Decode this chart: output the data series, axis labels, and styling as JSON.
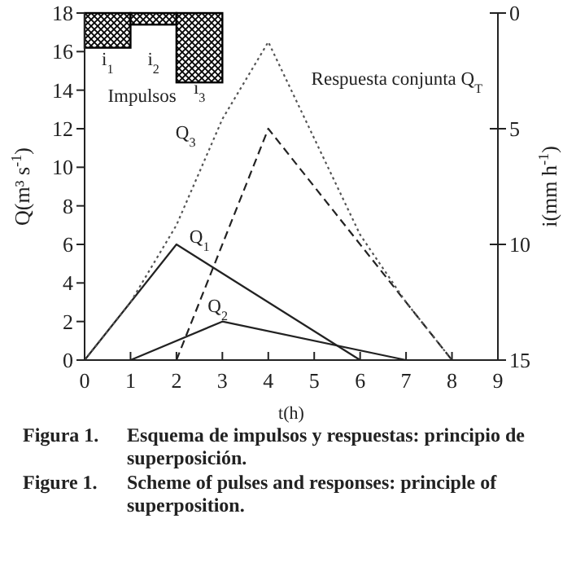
{
  "chart_data": {
    "type": "line",
    "xlabel": "t(h)",
    "ylabel": "Q(m³ s$^{-1}$)",
    "y2label": "i(mm h$^{-1}$)",
    "xlim": [
      0,
      9
    ],
    "xticks": [
      0,
      1,
      2,
      3,
      4,
      5,
      6,
      7,
      8,
      9
    ],
    "ylim": [
      0,
      18
    ],
    "yticks": [
      0,
      2,
      4,
      6,
      8,
      10,
      12,
      14,
      16,
      18
    ],
    "y2lim": [
      15,
      0
    ],
    "y2ticks": [
      0,
      5,
      10,
      15
    ],
    "grid": false,
    "marker": "none",
    "series": [
      {
        "type": "bar",
        "axis": "y2",
        "color": "#000000",
        "x": [
          0.5,
          1.5,
          2.5
        ],
        "values": [
          1.5,
          0.5,
          3
        ]
      },
      {
        "color": "#222222",
        "line_style": "solid",
        "x": [
          0,
          2,
          6
        ],
        "values": [
          0,
          6,
          0
        ]
      },
      {
        "color": "#222222",
        "line_style": "solid",
        "x": [
          1,
          3,
          7
        ],
        "values": [
          0,
          2,
          0
        ]
      },
      {
        "color": "#222222",
        "line_style": "dashed",
        "x": [
          2,
          4,
          8
        ],
        "values": [
          0,
          12,
          0
        ]
      },
      {
        "color": "#555555",
        "line_style": "dotted",
        "x": [
          0,
          1,
          2,
          3,
          4,
          5,
          6,
          7,
          8
        ],
        "values": [
          0,
          3,
          7,
          12.5,
          16.5,
          11.5,
          6.5,
          3,
          0
        ]
      }
    ],
    "annotations": [
      "i$_{1}$",
      "i$_{2}$",
      "i$_{3}$",
      "Impulsos",
      "Q$_{1}$",
      "Q$_{2}$",
      "Q$_{3}$",
      "Respuesta conjunta Q$_{T}$",
      "Figura 1. Esquema de impulsos y respuestas: principio de superposición.",
      "Figure 1. Scheme of pulses and responses: principle of superposition."
    ]
  }
}
